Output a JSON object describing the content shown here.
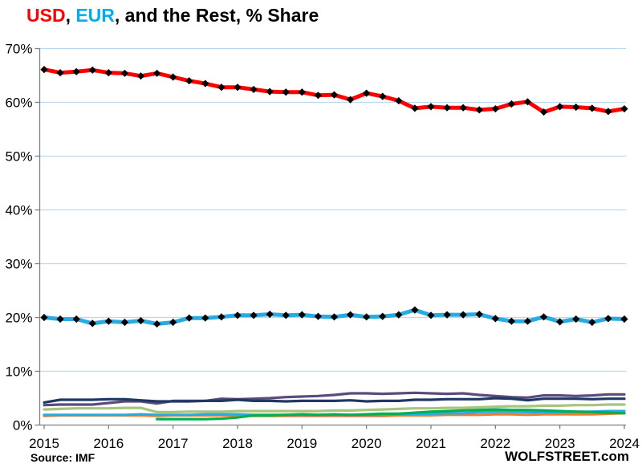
{
  "title": {
    "usd": "USD",
    "sep": ", ",
    "eur": "EUR",
    "rest": ", and the Rest, % Share"
  },
  "footer": {
    "source": "Source: IMF",
    "watermark": "WOLFSTREET.com"
  },
  "chart_data": {
    "type": "line",
    "title": "USD, EUR, and the Rest, % Share",
    "subtitle": "",
    "x_start": "2015 Q1",
    "x_end": "2024 Q1",
    "x_step": "quarter",
    "n_points": 37,
    "x_tick_labels": [
      "2015",
      "2016",
      "2017",
      "2018",
      "2019",
      "2020",
      "2021",
      "2022",
      "2023",
      "2024"
    ],
    "y_tick_labels": [
      "0%",
      "10%",
      "20%",
      "30%",
      "40%",
      "50%",
      "60%",
      "70%"
    ],
    "ylim": [
      0,
      70
    ],
    "y_tick_interval": 10,
    "grid": "horizontal",
    "legend": "none (USD and EUR identified by title colors; remaining six lines unlabeled)",
    "colors": {
      "grid": "#bdd7ee",
      "axis": "#808080",
      "marker": "#000000",
      "usd_accent": "#fe0000",
      "eur_accent": "#00aeef"
    },
    "series": [
      {
        "name": "unlabeled-olive-green",
        "color": "#a9c47f",
        "width": 3.2,
        "markers": false,
        "values": [
          2.9,
          3.0,
          3.1,
          3.1,
          3.1,
          3.2,
          3.2,
          2.4,
          2.4,
          2.5,
          2.5,
          2.5,
          2.6,
          2.6,
          2.6,
          2.6,
          2.6,
          2.6,
          2.7,
          2.7,
          2.8,
          2.9,
          3.0,
          3.1,
          3.1,
          3.2,
          3.2,
          3.3,
          3.4,
          3.5,
          3.5,
          3.6,
          3.6,
          3.7,
          3.7,
          3.8,
          3.8
        ]
      },
      {
        "name": "unlabeled-orange",
        "color": "#ed7d31",
        "width": 3.2,
        "markers": false,
        "values": [
          1.7,
          1.8,
          1.8,
          1.8,
          1.8,
          1.8,
          1.8,
          1.7,
          1.8,
          1.8,
          1.8,
          1.8,
          1.8,
          1.7,
          1.7,
          1.7,
          1.7,
          1.7,
          1.7,
          1.7,
          1.7,
          1.7,
          1.8,
          1.8,
          1.8,
          1.9,
          1.9,
          1.9,
          2.0,
          2.0,
          1.9,
          2.0,
          2.0,
          2.0,
          2.0,
          2.1,
          2.2
        ]
      },
      {
        "name": "unlabeled-light-blue",
        "color": "#29abe2",
        "width": 3.2,
        "markers": false,
        "values": [
          1.9,
          1.9,
          1.9,
          1.9,
          1.9,
          1.9,
          2.0,
          1.9,
          1.9,
          1.9,
          2.0,
          2.0,
          2.0,
          1.9,
          1.9,
          1.9,
          1.9,
          1.9,
          1.9,
          1.9,
          1.9,
          1.9,
          2.0,
          2.1,
          2.1,
          2.2,
          2.2,
          2.4,
          2.5,
          2.5,
          2.4,
          2.4,
          2.4,
          2.5,
          2.5,
          2.6,
          2.6
        ]
      },
      {
        "name": "unlabeled-green",
        "color": "#00b050",
        "width": 3.2,
        "markers": false,
        "values": [
          null,
          null,
          null,
          null,
          null,
          null,
          null,
          1.1,
          1.1,
          1.1,
          1.1,
          1.2,
          1.4,
          1.8,
          1.8,
          1.9,
          2.0,
          1.9,
          2.0,
          1.9,
          2.0,
          2.1,
          2.1,
          2.3,
          2.5,
          2.6,
          2.7,
          2.8,
          2.9,
          2.8,
          2.8,
          2.7,
          2.6,
          2.5,
          2.4,
          2.3,
          2.2
        ]
      },
      {
        "name": "unlabeled-purple",
        "color": "#5b4a7e",
        "width": 3.2,
        "markers": false,
        "values": [
          3.7,
          3.8,
          3.8,
          3.8,
          4.1,
          4.4,
          4.4,
          4.0,
          4.5,
          4.5,
          4.5,
          4.9,
          4.8,
          4.9,
          5.0,
          5.2,
          5.3,
          5.4,
          5.6,
          5.9,
          5.9,
          5.8,
          5.9,
          6.0,
          5.9,
          5.8,
          5.9,
          5.6,
          5.4,
          5.2,
          5.1,
          5.5,
          5.5,
          5.4,
          5.5,
          5.7,
          5.7
        ]
      },
      {
        "name": "unlabeled-navy",
        "color": "#1f3864",
        "width": 3.2,
        "markers": false,
        "values": [
          4.2,
          4.7,
          4.7,
          4.7,
          4.8,
          4.8,
          4.6,
          4.4,
          4.4,
          4.4,
          4.5,
          4.5,
          4.7,
          4.5,
          4.5,
          4.4,
          4.5,
          4.5,
          4.5,
          4.6,
          4.4,
          4.5,
          4.5,
          4.7,
          4.7,
          4.8,
          4.8,
          4.8,
          5.0,
          4.9,
          4.6,
          4.9,
          4.9,
          4.9,
          4.8,
          4.9,
          4.9
        ]
      },
      {
        "name": "EUR",
        "color": "#29abe2",
        "width": 5,
        "markers": true,
        "values": [
          20.0,
          19.7,
          19.7,
          18.9,
          19.3,
          19.1,
          19.4,
          18.8,
          19.1,
          19.9,
          19.9,
          20.1,
          20.4,
          20.4,
          20.6,
          20.4,
          20.5,
          20.2,
          20.1,
          20.5,
          20.1,
          20.2,
          20.5,
          21.4,
          20.4,
          20.5,
          20.5,
          20.6,
          19.8,
          19.3,
          19.3,
          20.1,
          19.2,
          19.7,
          19.1,
          19.8,
          19.7
        ]
      },
      {
        "name": "USD",
        "color": "#fe0000",
        "width": 5,
        "markers": true,
        "values": [
          66.1,
          65.5,
          65.7,
          66.0,
          65.5,
          65.4,
          64.9,
          65.4,
          64.7,
          64.0,
          63.5,
          62.8,
          62.8,
          62.4,
          62.0,
          61.9,
          61.9,
          61.3,
          61.4,
          60.5,
          61.7,
          61.1,
          60.3,
          58.9,
          59.2,
          59.0,
          59.0,
          58.6,
          58.8,
          59.7,
          60.1,
          58.2,
          59.2,
          59.1,
          58.9,
          58.3,
          58.8
        ]
      }
    ]
  }
}
